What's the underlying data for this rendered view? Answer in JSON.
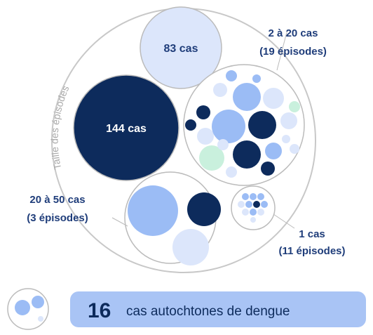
{
  "arc_label": "Taille des épisodes",
  "groups": [
    {
      "label": "83 cas"
    },
    {
      "label": "144 cas"
    },
    {
      "label": "2 à 20 cas",
      "sublabel": "(19 épisodes)"
    },
    {
      "label": "20 à 50 cas",
      "sublabel": "(3 épisodes)"
    },
    {
      "label": "1 cas",
      "sublabel": "(11 épisodes)"
    }
  ],
  "footer": {
    "number": "16",
    "text": "cas autochtones de dengue"
  }
}
